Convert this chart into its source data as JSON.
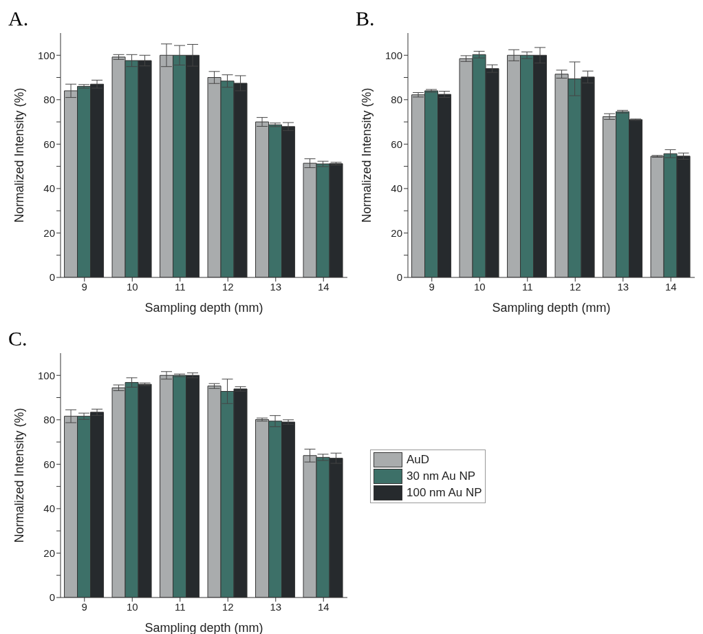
{
  "chart_data": [
    {
      "type": "bar",
      "title": "A.",
      "xlabel": "Sampling depth (mm)",
      "ylabel": "Normalized Intensity (%)",
      "categories": [
        "9",
        "10",
        "11",
        "12",
        "13",
        "14"
      ],
      "ylim": [
        0,
        110
      ],
      "yticks": [
        0,
        {
          "value": 10,
          "label": null
        },
        20,
        {
          "value": 30,
          "label": null
        },
        40,
        {
          "value": 50,
          "label": null
        },
        60,
        {
          "value": 70,
          "label": null
        },
        80,
        {
          "value": 90,
          "label": null
        },
        100
      ],
      "legend": false,
      "series": [
        {
          "color": "#a9acad",
          "values": [
            84,
            99.2,
            100,
            90,
            70,
            51.4
          ],
          "errors": [
            3,
            1.1,
            5.1,
            2.7,
            2,
            2
          ]
        },
        {
          "color": "#3d7068",
          "values": [
            86,
            97.6,
            100,
            88.4,
            68.7,
            51.1
          ],
          "errors": [
            0.8,
            2.7,
            4.4,
            2.8,
            0.8,
            1.2
          ]
        },
        {
          "color": "#262a2d",
          "values": [
            87,
            97.6,
            100,
            87.4,
            67.9,
            51.2
          ],
          "errors": [
            1.8,
            2.4,
            4.9,
            3.4,
            1.8,
            0.6
          ]
        }
      ]
    },
    {
      "type": "bar",
      "title": "B.",
      "xlabel": "Sampling depth (mm)",
      "ylabel": "Normalized Intensity (%)",
      "categories": [
        "9",
        "10",
        "11",
        "12",
        "13",
        "14"
      ],
      "ylim": [
        0,
        110
      ],
      "yticks": [
        0,
        {
          "value": 10,
          "label": null
        },
        20,
        {
          "value": 30,
          "label": null
        },
        40,
        {
          "value": 50,
          "label": null
        },
        60,
        {
          "value": 70,
          "label": null
        },
        80,
        {
          "value": 90,
          "label": null
        },
        100
      ],
      "legend": false,
      "series": [
        {
          "color": "#a9acad",
          "values": [
            82.2,
            98.5,
            100,
            91.5,
            72.4,
            54.5
          ],
          "errors": [
            1,
            1.3,
            2.5,
            1.8,
            1.3,
            0.4
          ]
        },
        {
          "color": "#3d7068",
          "values": [
            84,
            100.3,
            100,
            89.4,
            74.6,
            55.7
          ],
          "errors": [
            0.6,
            1.5,
            1.5,
            7.6,
            0.6,
            1.8
          ]
        },
        {
          "color": "#262a2d",
          "values": [
            82.4,
            94,
            100,
            90.2,
            71,
            54.6
          ],
          "errors": [
            1.4,
            1.7,
            3.5,
            2.7,
            0.3,
            1.4
          ]
        }
      ]
    },
    {
      "type": "bar",
      "title": "C.",
      "xlabel": "Sampling depth (mm)",
      "ylabel": "Normalized Intensity (%)",
      "categories": [
        "9",
        "10",
        "11",
        "12",
        "13",
        "14"
      ],
      "ylim": [
        0,
        110
      ],
      "yticks": [
        0,
        {
          "value": 10,
          "label": null
        },
        20,
        {
          "value": 30,
          "label": null
        },
        40,
        {
          "value": 50,
          "label": null
        },
        60,
        {
          "value": 70,
          "label": null
        },
        80,
        {
          "value": 90,
          "label": null
        },
        100
      ],
      "legend": "right",
      "series": [
        {
          "name": "AuD",
          "color": "#a9acad",
          "values": [
            81.6,
            94.4,
            100,
            95.2,
            80.1,
            63.9
          ],
          "errors": [
            2.9,
            1.3,
            1.7,
            1.1,
            0.7,
            2.9
          ]
        },
        {
          "name": "30 nm Au NP",
          "color": "#3d7068",
          "values": [
            81.6,
            96.8,
            100,
            92.8,
            79.4,
            63.1
          ],
          "errors": [
            1.4,
            2.1,
            0.6,
            5.5,
            2.5,
            1.4
          ]
        },
        {
          "name": "100 nm Au NP",
          "color": "#262a2d",
          "values": [
            83.4,
            96,
            100,
            93.9,
            79,
            62.7
          ],
          "errors": [
            1.4,
            0.6,
            1.1,
            1,
            1,
            2.3
          ]
        }
      ]
    }
  ]
}
